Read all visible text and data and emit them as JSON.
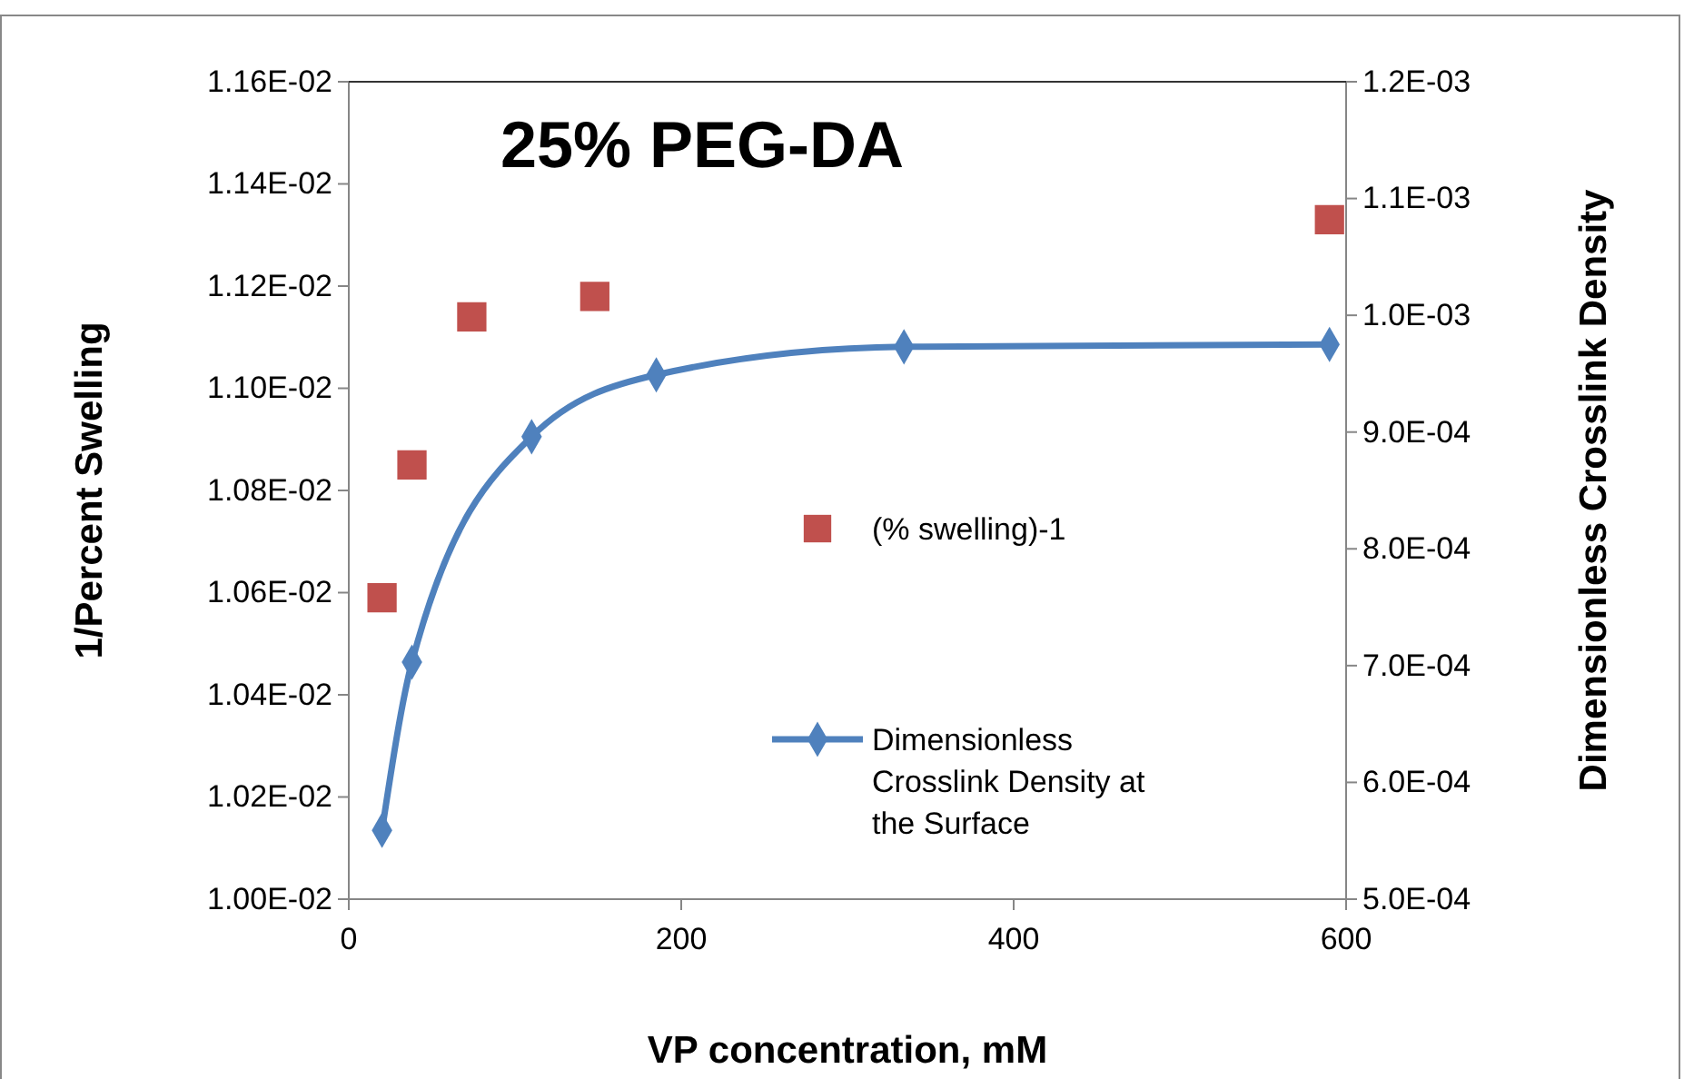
{
  "chart_data": {
    "type": "scatter",
    "title": "25% PEG-DA",
    "xlabel": "VP concentration, mM",
    "ylabel": "1/Percent Swelling",
    "y2label": "Dimensionless Crosslink Density",
    "x": [
      20,
      38,
      74,
      148,
      590
    ],
    "series": [
      {
        "name": "(% swelling)-1",
        "marker": "square",
        "color": "#c0504d",
        "values": [
          0.01059,
          0.01085,
          0.01114,
          0.01118,
          0.01133
        ]
      },
      {
        "name": "Dimensionless Crosslink Density at the Surface",
        "type": "line",
        "axis": "y2",
        "marker": "diamond",
        "line_style": "solid",
        "color": "#4f81bd",
        "x": [
          20,
          38,
          110,
          185,
          334,
          590
        ],
        "values": [
          0.000559,
          0.000703,
          0.000896,
          0.000949,
          0.000973,
          0.000975
        ]
      }
    ],
    "xlim": [
      0,
      600
    ],
    "xticks": [
      0,
      200,
      400,
      600
    ],
    "ylim": [
      0.01,
      0.0116
    ],
    "yticks": [
      {
        "value": 0.01,
        "label": "1.00E-02"
      },
      {
        "value": 0.0102,
        "label": "1.02E-02"
      },
      {
        "value": 0.0104,
        "label": "1.04E-02"
      },
      {
        "value": 0.0106,
        "label": "1.06E-02"
      },
      {
        "value": 0.0108,
        "label": "1.08E-02"
      },
      {
        "value": 0.011,
        "label": "1.10E-02"
      },
      {
        "value": 0.0112,
        "label": "1.12E-02"
      },
      {
        "value": 0.0114,
        "label": "1.14E-02"
      },
      {
        "value": 0.0116,
        "label": "1.16E-02"
      }
    ],
    "y2lim": [
      0.0005,
      0.0012
    ],
    "y2ticks": [
      {
        "value": 0.0005,
        "label": "5.0E-04"
      },
      {
        "value": 0.0006,
        "label": "6.0E-04"
      },
      {
        "value": 0.0007,
        "label": "7.0E-04"
      },
      {
        "value": 0.0008,
        "label": "8.0E-04"
      },
      {
        "value": 0.0009,
        "label": "9.0E-04"
      },
      {
        "value": 0.001,
        "label": "1.0E-03"
      },
      {
        "value": 0.0011,
        "label": "1.1E-03"
      },
      {
        "value": 0.0012,
        "label": "1.2E-03"
      }
    ],
    "grid": false,
    "legend": "right"
  }
}
